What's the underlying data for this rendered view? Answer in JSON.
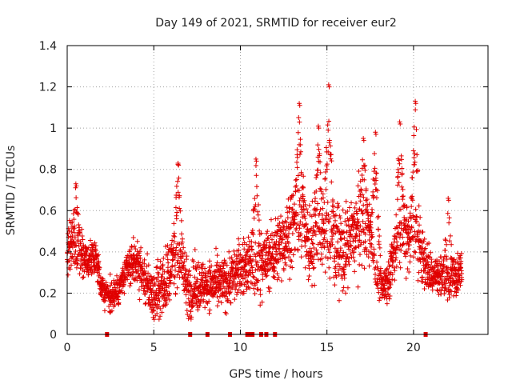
{
  "chart_data": {
    "type": "scatter",
    "title": "Day 149 of 2021, SRMTID for receiver eur2",
    "xlabel": "GPS time / hours",
    "ylabel": "SRMTID / TECUs",
    "xlim": [
      0,
      24.3
    ],
    "ylim": [
      0,
      1.4
    ],
    "x_ticks": [
      0,
      5,
      10,
      15,
      20
    ],
    "x_tick_labels": [
      "0",
      "5",
      "10",
      "15",
      "20"
    ],
    "y_ticks": [
      0,
      0.2,
      0.4,
      0.6,
      0.8,
      1,
      1.2,
      1.4
    ],
    "y_tick_labels": [
      "0",
      "0.2",
      "0.4",
      "0.6",
      "0.8",
      "1",
      "1.2",
      "1.4"
    ],
    "grid": true,
    "marker": "+",
    "colors": {
      "marker": "#e00000",
      "grid": "#a0a0a0",
      "axis": "#000000"
    },
    "x_range_hours": [
      0,
      22.8
    ],
    "baseline_level": [
      [
        0.0,
        0.42
      ],
      [
        0.5,
        0.42
      ],
      [
        1.0,
        0.36
      ],
      [
        1.7,
        0.36
      ],
      [
        2.0,
        0.22
      ],
      [
        2.5,
        0.18
      ],
      [
        3.0,
        0.22
      ],
      [
        3.5,
        0.32
      ],
      [
        4.0,
        0.36
      ],
      [
        4.5,
        0.26
      ],
      [
        5.0,
        0.18
      ],
      [
        5.5,
        0.24
      ],
      [
        6.0,
        0.32
      ],
      [
        6.5,
        0.38
      ],
      [
        7.0,
        0.2
      ],
      [
        7.5,
        0.24
      ],
      [
        8.5,
        0.24
      ],
      [
        9.0,
        0.24
      ],
      [
        9.5,
        0.28
      ],
      [
        10.0,
        0.32
      ],
      [
        10.5,
        0.34
      ],
      [
        11.0,
        0.32
      ],
      [
        11.5,
        0.36
      ],
      [
        12.0,
        0.4
      ],
      [
        12.5,
        0.46
      ],
      [
        13.0,
        0.52
      ],
      [
        13.5,
        0.54
      ],
      [
        14.0,
        0.42
      ],
      [
        14.5,
        0.5
      ],
      [
        15.0,
        0.48
      ],
      [
        15.5,
        0.44
      ],
      [
        16.0,
        0.4
      ],
      [
        16.5,
        0.48
      ],
      [
        17.0,
        0.52
      ],
      [
        17.5,
        0.48
      ],
      [
        18.0,
        0.22
      ],
      [
        18.5,
        0.26
      ],
      [
        19.0,
        0.44
      ],
      [
        19.5,
        0.48
      ],
      [
        20.0,
        0.5
      ],
      [
        20.5,
        0.38
      ],
      [
        21.0,
        0.3
      ],
      [
        21.5,
        0.28
      ],
      [
        22.0,
        0.26
      ],
      [
        22.5,
        0.3
      ],
      [
        22.8,
        0.32
      ]
    ],
    "spread_level": [
      [
        0.0,
        0.12
      ],
      [
        2.0,
        0.06
      ],
      [
        3.5,
        0.08
      ],
      [
        6.0,
        0.14
      ],
      [
        8.0,
        0.1
      ],
      [
        10.0,
        0.12
      ],
      [
        12.0,
        0.14
      ],
      [
        13.5,
        0.18
      ],
      [
        15.0,
        0.18
      ],
      [
        17.0,
        0.18
      ],
      [
        18.0,
        0.06
      ],
      [
        19.5,
        0.16
      ],
      [
        21.0,
        0.1
      ],
      [
        22.8,
        0.08
      ]
    ],
    "peaks": [
      {
        "x": 0.5,
        "y": 0.73
      },
      {
        "x": 6.4,
        "y": 0.83
      },
      {
        "x": 10.9,
        "y": 0.85
      },
      {
        "x": 13.4,
        "y": 1.12
      },
      {
        "x": 14.5,
        "y": 1.01
      },
      {
        "x": 15.1,
        "y": 1.21
      },
      {
        "x": 17.1,
        "y": 0.95
      },
      {
        "x": 17.8,
        "y": 0.98
      },
      {
        "x": 19.2,
        "y": 1.03
      },
      {
        "x": 20.1,
        "y": 1.13
      },
      {
        "x": 22.0,
        "y": 0.66
      }
    ],
    "zero_points": [
      2.3,
      7.1,
      8.1,
      9.4,
      10.4,
      10.5,
      10.6,
      10.7,
      11.2,
      11.5,
      12.0,
      20.7
    ],
    "point_count": 2800
  }
}
